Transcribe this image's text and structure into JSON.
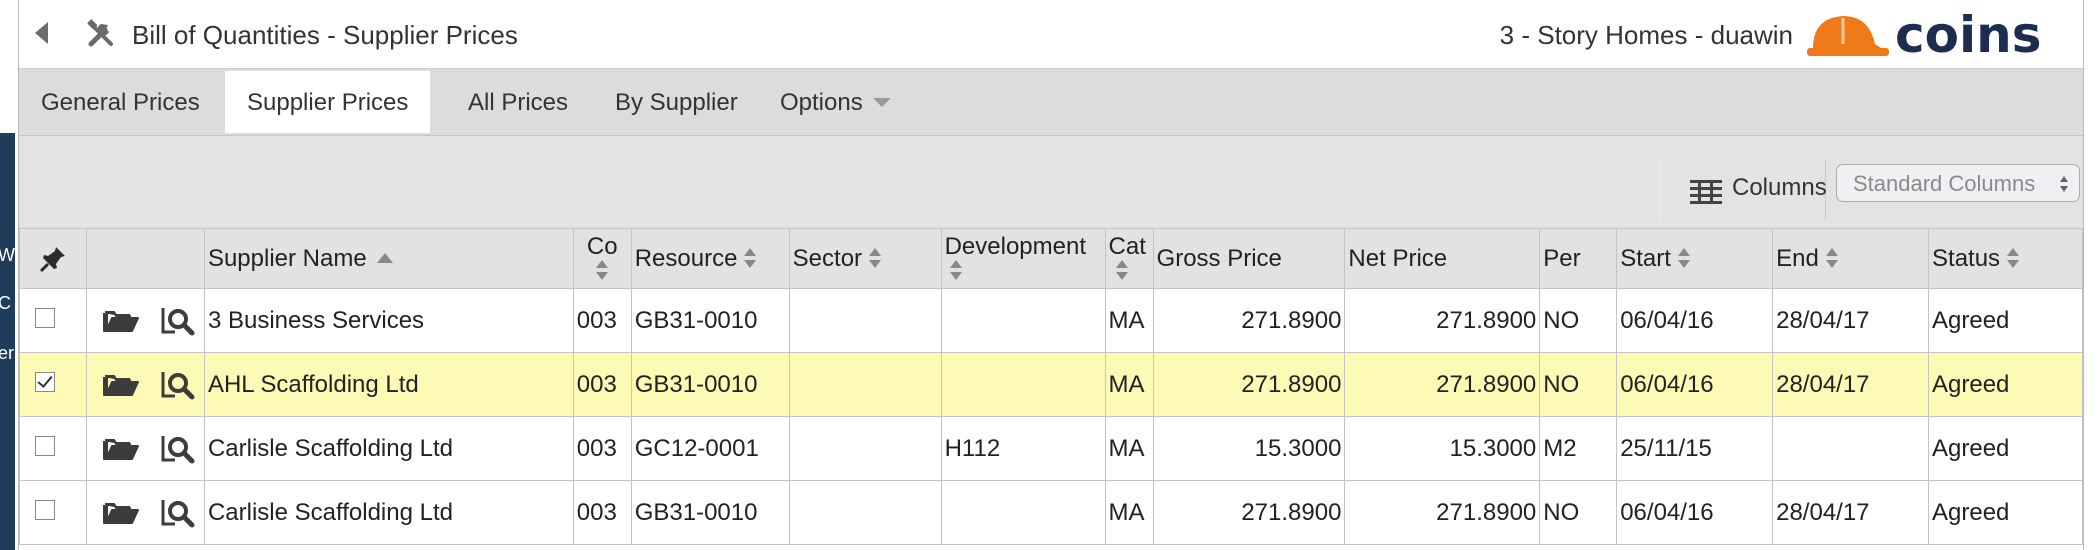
{
  "window": {
    "title": "Bill of Quantities - Supplier Prices",
    "context": "3 - Story Homes - duawin",
    "logo_text": "COINS"
  },
  "tabs": [
    {
      "label": "General Prices"
    },
    {
      "label": "Supplier Prices"
    },
    {
      "label": "All Prices"
    },
    {
      "label": "By Supplier"
    },
    {
      "label": "Options"
    }
  ],
  "toolbar": {
    "columns_label": "Columns",
    "column_set_value": "Standard Columns"
  },
  "table": {
    "headers": {
      "supplier_name": "Supplier Name",
      "co": "Co",
      "resource": "Resource",
      "sector": "Sector",
      "development": "Development",
      "cat": "Cat",
      "gross_price": "Gross Price",
      "net_price": "Net Price",
      "per": "Per",
      "start": "Start",
      "end": "End",
      "status": "Status"
    },
    "rows": [
      {
        "checked": false,
        "supplier_name": "3 Business Services",
        "co": "003",
        "resource": "GB31-0010",
        "sector": "",
        "development": "",
        "cat": "MA",
        "gross_price": "271.8900",
        "net_price": "271.8900",
        "per": "NO",
        "start": "06/04/16",
        "end": "28/04/17",
        "status": "Agreed"
      },
      {
        "checked": true,
        "supplier_name": "AHL Scaffolding Ltd",
        "co": "003",
        "resource": "GB31-0010",
        "sector": "",
        "development": "",
        "cat": "MA",
        "gross_price": "271.8900",
        "net_price": "271.8900",
        "per": "NO",
        "start": "06/04/16",
        "end": "28/04/17",
        "status": "Agreed"
      },
      {
        "checked": false,
        "supplier_name": "Carlisle Scaffolding Ltd",
        "co": "003",
        "resource": "GC12-0001",
        "sector": "",
        "development": "H112",
        "cat": "MA",
        "gross_price": "15.3000",
        "net_price": "15.3000",
        "per": "M2",
        "start": "25/11/15",
        "end": "",
        "status": "Agreed"
      },
      {
        "checked": false,
        "supplier_name": "Carlisle Scaffolding Ltd",
        "co": "003",
        "resource": "GB31-0010",
        "sector": "",
        "development": "",
        "cat": "MA",
        "gross_price": "271.8900",
        "net_price": "271.8900",
        "per": "NO",
        "start": "06/04/16",
        "end": "28/04/17",
        "status": "Agreed"
      }
    ]
  },
  "colors": {
    "selected_row": "#fcfab5",
    "header_bg": "#e2e2e2",
    "tabbar_bg": "#dcdcdc",
    "logo_orange": "#f07a1a",
    "logo_navy": "#1d2d52",
    "left_strip": "#1f3d5a"
  },
  "left_strip_chars": [
    "W",
    "C",
    "er"
  ]
}
